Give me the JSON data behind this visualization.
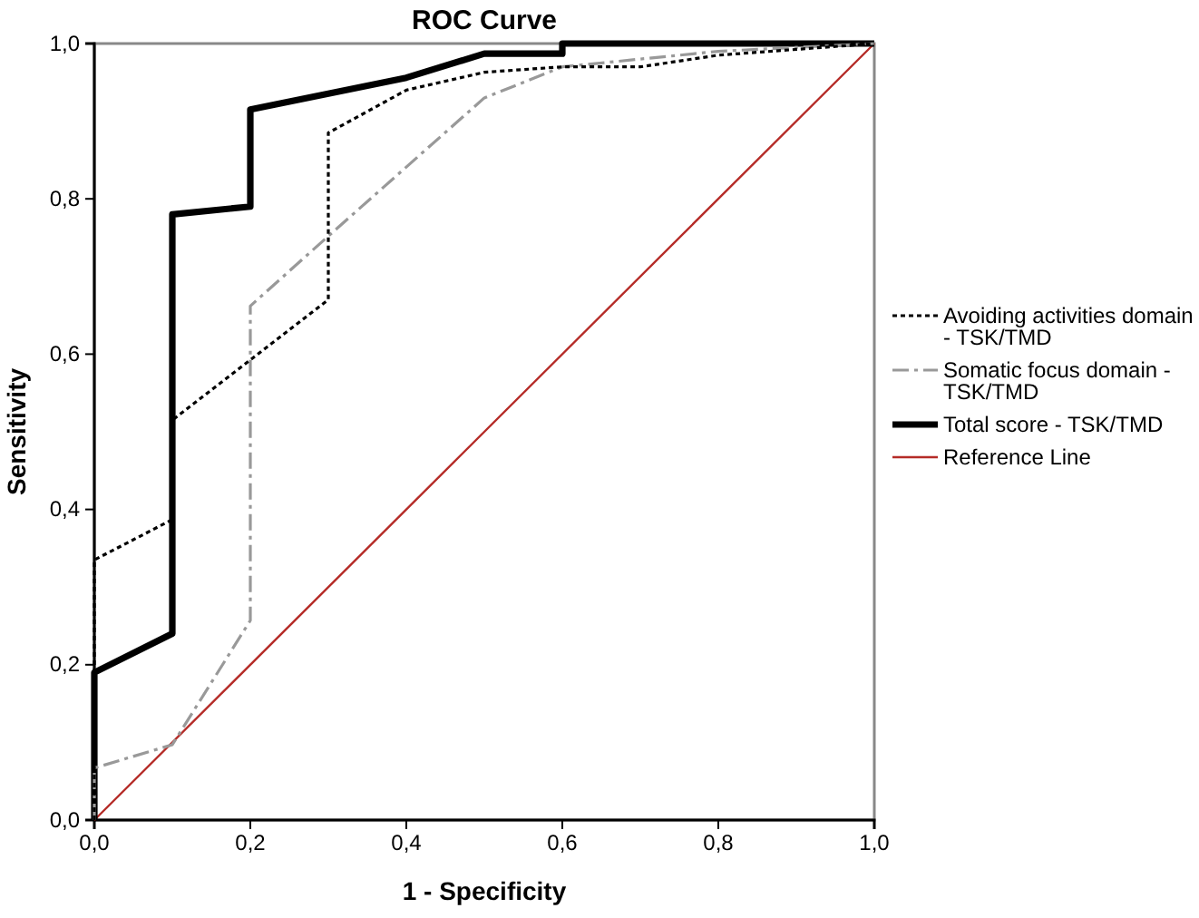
{
  "chart_data": {
    "type": "line",
    "title": "ROC Curve",
    "xlabel": "1 - Specificity",
    "ylabel": "Sensitivity",
    "xlim": [
      0,
      1
    ],
    "ylim": [
      0,
      1
    ],
    "xticks": [
      {
        "value": 0,
        "label": "0,0"
      },
      {
        "value": 0.2,
        "label": "0,2"
      },
      {
        "value": 0.4,
        "label": "0,4"
      },
      {
        "value": 0.6,
        "label": "0,6"
      },
      {
        "value": 0.8,
        "label": "0,8"
      },
      {
        "value": 1,
        "label": "1,0"
      }
    ],
    "yticks": [
      {
        "value": 0,
        "label": "0,0"
      },
      {
        "value": 0.2,
        "label": "0,2"
      },
      {
        "value": 0.4,
        "label": "0,4"
      },
      {
        "value": 0.6,
        "label": "0,6"
      },
      {
        "value": 0.8,
        "label": "0,8"
      },
      {
        "value": 1,
        "label": "1,0"
      }
    ],
    "grid": false,
    "legend": "right",
    "marker": "none",
    "series": [
      {
        "name": "Avoiding activities domain - TSK/TMD",
        "color": "#000000",
        "line_style": "dotted",
        "x": [
          0,
          0,
          0.1,
          0.1,
          0.3,
          0.3,
          0.4,
          0.5,
          0.6,
          0.7,
          0.8,
          1
        ],
        "values": [
          0,
          0.335,
          0.387,
          0.515,
          0.67,
          0.885,
          0.94,
          0.963,
          0.97,
          0.97,
          0.985,
          1
        ]
      },
      {
        "name": "Somatic focus domain - TSK/TMD",
        "color": "#999999",
        "line_style": "dashed",
        "x": [
          0,
          0,
          0.1,
          0.2,
          0.2,
          0.3,
          0.5,
          0.6,
          0.8,
          1
        ],
        "values": [
          0,
          0.067,
          0.097,
          0.257,
          0.662,
          0.752,
          0.93,
          0.97,
          0.99,
          1
        ]
      },
      {
        "name": "Total score - TSK/TMD",
        "color": "#000000",
        "line_style": "solid",
        "x": [
          0,
          0,
          0.1,
          0.1,
          0.2,
          0.2,
          0.4,
          0.5,
          0.6,
          0.6,
          1
        ],
        "values": [
          0,
          0.19,
          0.24,
          0.78,
          0.79,
          0.915,
          0.956,
          0.987,
          0.987,
          1,
          1
        ]
      },
      {
        "name": "Reference Line",
        "color": "#b52b27",
        "line_style": "solid",
        "x": [
          0,
          1
        ],
        "values": [
          0,
          1
        ]
      }
    ]
  }
}
